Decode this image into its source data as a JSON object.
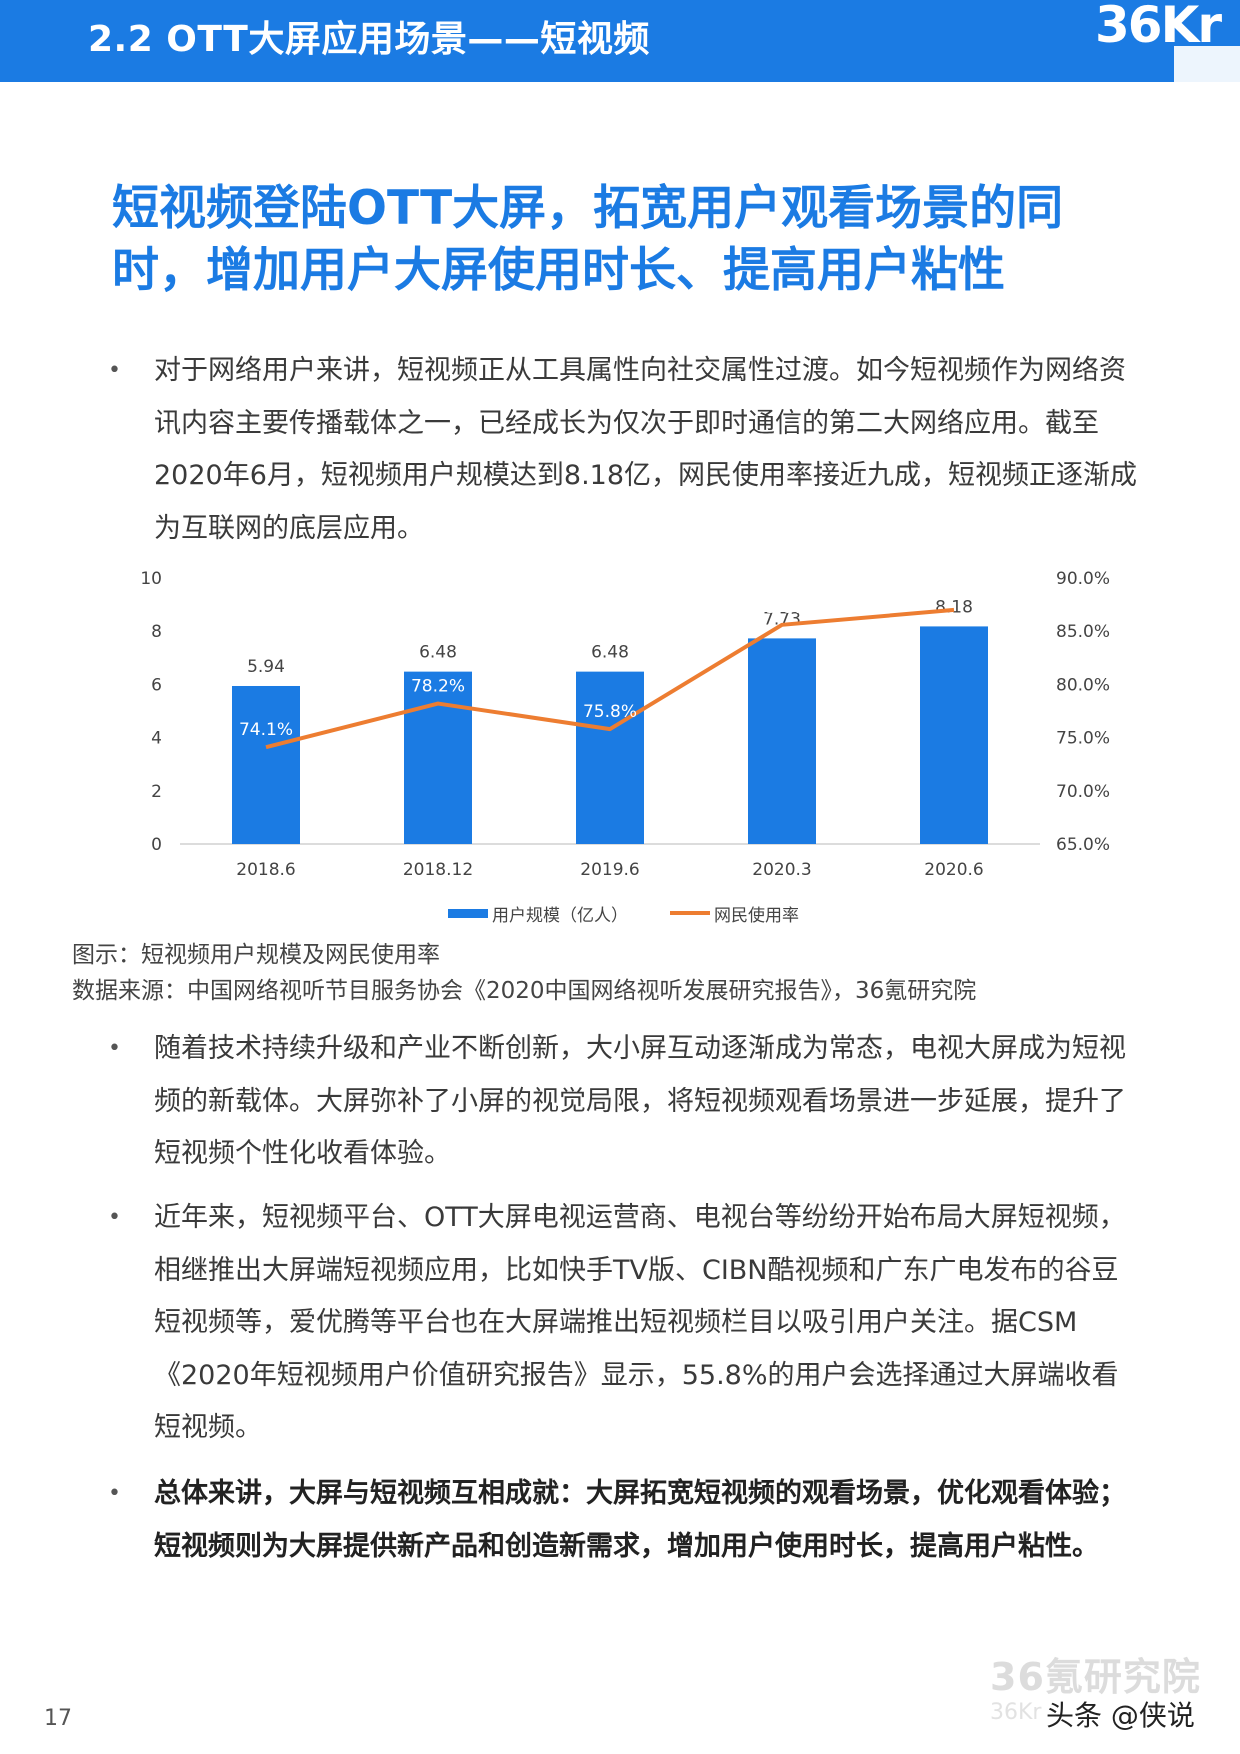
{
  "header": {
    "title": "2.2 OTT大屏应用场景——短视频",
    "brand_mark": "36Kr"
  },
  "heading": {
    "line1": "短视频登陆OTT大屏，拓宽用户观看场景的同",
    "line2": "时，增加用户大屏使用时长、提高用户粘性"
  },
  "paragraphs": [
    {
      "bullet": "•",
      "text": "对于网络用户来讲，短视频正从工具属性向社交属性过渡。如今短视频作为网络资讯内容主要传播载体之一，已经成长为仅次于即时通信的第二大网络应用。截至2020年6月，短视频用户规模达到8.18亿，网民使用率接近九成，短视频正逐渐成为互联网的底层应用。"
    },
    {
      "bullet": "•",
      "text": "随着技术持续升级和产业不断创新，大小屏互动逐渐成为常态，电视大屏成为短视频的新载体。大屏弥补了小屏的视觉局限，将短视频观看场景进一步延展，提升了短视频个性化收看体验。"
    },
    {
      "bullet": "•",
      "text": "近年来，短视频平台、OTT大屏电视运营商、电视台等纷纷开始布局大屏短视频，相继推出大屏端短视频应用，比如快手TV版、CIBN酷视频和广东广电发布的谷豆短视频等，爱优腾等平台也在大屏端推出短视频栏目以吸引用户关注。据CSM《2020年短视频用户价值研究报告》显示，55.8%的用户会选择通过大屏端收看短视频。"
    },
    {
      "bullet": "•",
      "text": "总体来讲，大屏与短视频互相成就：大屏拓宽短视频的观看场景，优化观看体验；短视频则为大屏提供新产品和创造新需求，增加用户使用时长，提高用户粘性。"
    }
  ],
  "chart_data": {
    "type": "bar",
    "categories": [
      "2018.6",
      "2018.12",
      "2019.6",
      "2020.3",
      "2020.6"
    ],
    "series": [
      {
        "name": "用户规模（亿人）",
        "kind": "bar",
        "axis": "left",
        "values": [
          5.94,
          6.48,
          6.48,
          7.73,
          8.18
        ],
        "labels": [
          "5.94",
          "6.48",
          "6.48",
          "7.73",
          "8.18"
        ],
        "color": "#1b7be3"
      },
      {
        "name": "网民使用率",
        "kind": "line",
        "axis": "right",
        "values": [
          74.1,
          78.2,
          75.8,
          85.6,
          87.0
        ],
        "labels": [
          "74.1%",
          "78.2%",
          "75.8%",
          "85.6%",
          "87.0%"
        ],
        "color": "#ed7d31"
      }
    ],
    "ylim": [
      0,
      10
    ],
    "y_ticks": [
      "0",
      "2",
      "4",
      "6",
      "8",
      "10"
    ],
    "y2lim": [
      65,
      90
    ],
    "y2_ticks": [
      "65.0%",
      "70.0%",
      "75.0%",
      "80.0%",
      "85.0%",
      "90.0%"
    ],
    "grid": false,
    "legend_position": "bottom"
  },
  "captions": {
    "figure": "图示：短视频用户规模及网民使用率",
    "source": "数据来源：中国网络视听节目服务协会《2020中国网络视听发展研究报告》，36氪研究院"
  },
  "footer": {
    "page_number": "17",
    "watermark": "36氪研究院",
    "watermark_sub": "36Kr",
    "toutiao_handle": "头条 @侠说"
  }
}
